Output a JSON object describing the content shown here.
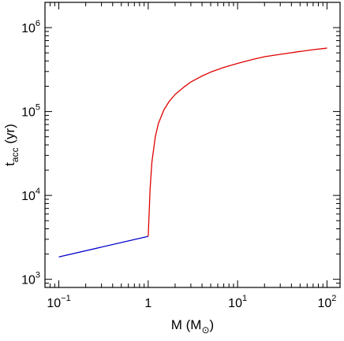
{
  "chart_data": {
    "type": "line",
    "title": "",
    "xlabel": "M (M⊙)",
    "ylabel": "t_acc (yr)",
    "xlabel_parts": {
      "text": "M (M",
      "subscript": "⊙",
      "close": ")"
    },
    "ylabel_parts": {
      "text": "t",
      "subscript": "acc",
      "rest": " (yr)"
    },
    "x_scale": "log",
    "y_scale": "log",
    "xlim": [
      0.07,
      140
    ],
    "ylim": [
      800,
      2000000
    ],
    "grid": false,
    "legend": "none",
    "x_ticks": [
      {
        "value": 0.1,
        "base": "10",
        "exp": "−1"
      },
      {
        "value": 1,
        "base": "1",
        "exp": ""
      },
      {
        "value": 10,
        "base": "10",
        "exp": "1"
      },
      {
        "value": 100,
        "base": "10",
        "exp": "2"
      }
    ],
    "y_ticks": [
      {
        "value": 1000,
        "base": "10",
        "exp": "3"
      },
      {
        "value": 10000,
        "base": "10",
        "exp": "4"
      },
      {
        "value": 100000,
        "base": "10",
        "exp": "5"
      },
      {
        "value": 1000000,
        "base": "10",
        "exp": "6"
      }
    ],
    "series": [
      {
        "color": "#0000cc",
        "x": [
          0.1,
          1.0
        ],
        "y": [
          1850,
          3250
        ]
      },
      {
        "color": "#e00000",
        "x": [
          1.0,
          1.05,
          1.1,
          1.2,
          1.3,
          1.5,
          1.7,
          2.0,
          2.5,
          3.0,
          4.0,
          5.0,
          7.0,
          10,
          15,
          20,
          30,
          50,
          70,
          100
        ],
        "y": [
          3250,
          12000,
          25000,
          50000,
          72000,
          105000,
          130000,
          160000,
          195000,
          225000,
          265000,
          295000,
          335000,
          375000,
          420000,
          450000,
          480000,
          520000,
          545000,
          570000
        ]
      }
    ]
  }
}
